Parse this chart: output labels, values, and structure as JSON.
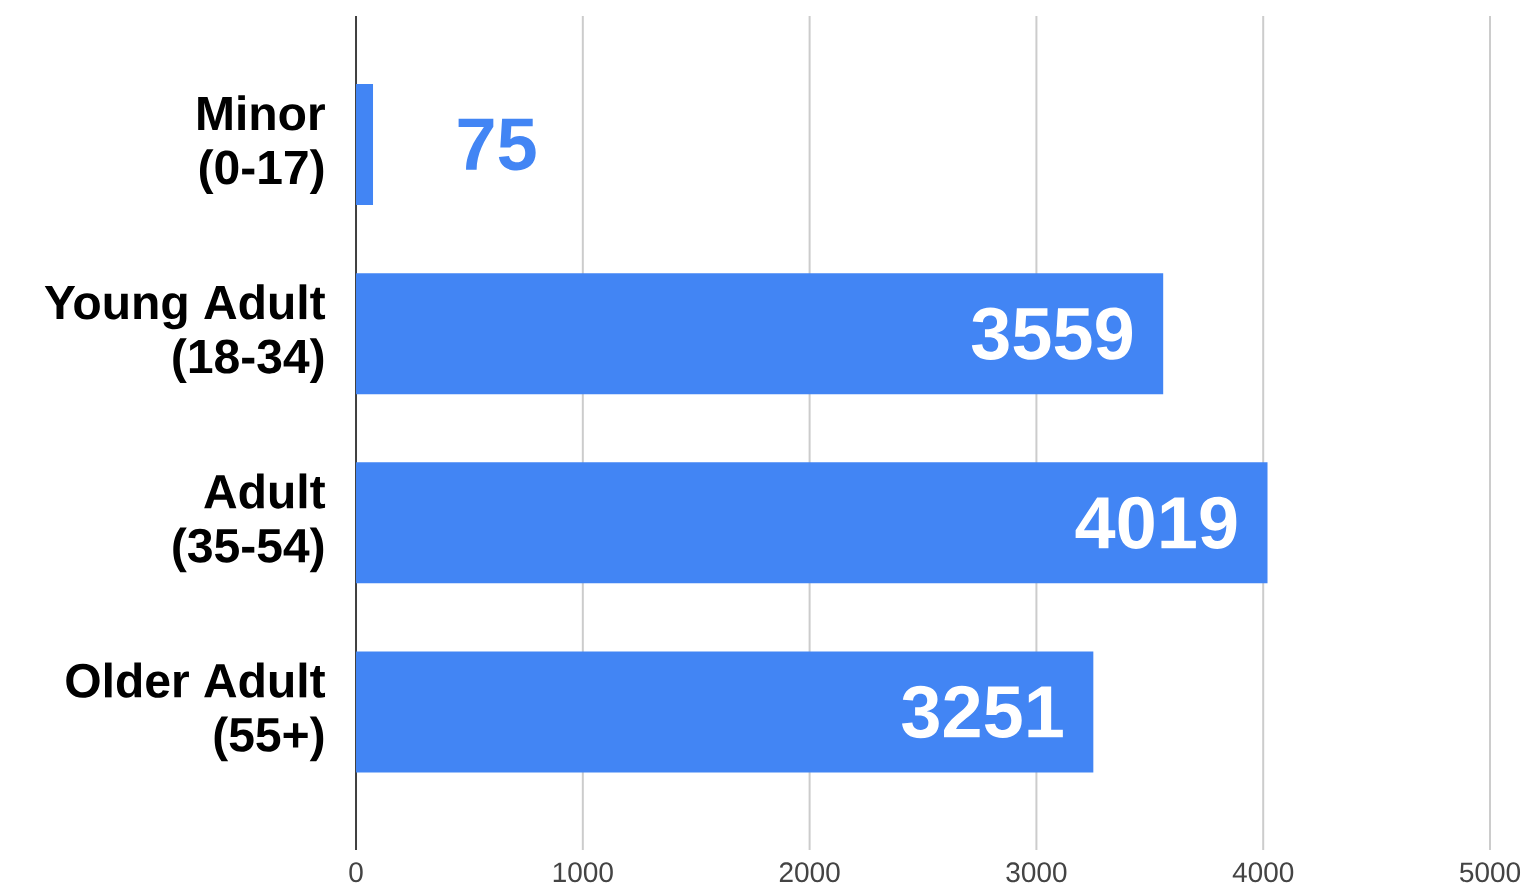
{
  "chart_data": {
    "type": "bar",
    "orientation": "horizontal",
    "categories": [
      "Minor\n(0-17)",
      "Young Adult\n(18-34)",
      "Adult\n(35-54)",
      "Older Adult\n(55+)"
    ],
    "values": [
      75,
      3559,
      4019,
      3251
    ],
    "color": "#4285f4",
    "xlim": [
      0,
      5000
    ],
    "xticks": [
      0,
      1000,
      2000,
      3000,
      4000,
      5000
    ],
    "grid": "x",
    "data_labels": true
  }
}
